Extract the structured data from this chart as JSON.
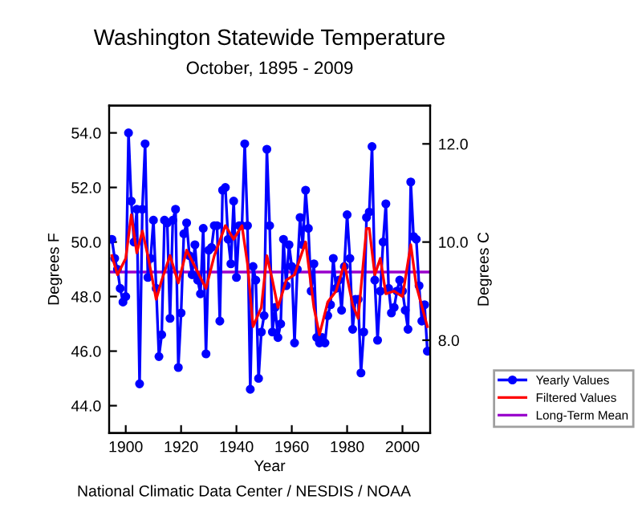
{
  "chart_data": {
    "type": "line",
    "title": "Washington Statewide Temperature",
    "subtitle": "October, 1895 - 2009",
    "xlabel": "Year",
    "ylabel": "Degrees F",
    "y2label": "Degrees C",
    "annotations": [
      "National Climatic Data Center / NESDIS / NOAA"
    ],
    "xlim": [
      1894,
      2010
    ],
    "xticks": [
      1900,
      1920,
      1940,
      1960,
      1980,
      2000
    ],
    "ylim": [
      43,
      55
    ],
    "yticks": [
      {
        "value": 44,
        "label": "44.0"
      },
      {
        "value": 46,
        "label": "46.0"
      },
      {
        "value": 48,
        "label": "48.0"
      },
      {
        "value": 50,
        "label": "50.0"
      },
      {
        "value": 52,
        "label": "52.0"
      },
      {
        "value": 54,
        "label": "54.0"
      }
    ],
    "y2lim": [
      6.11,
      12.78
    ],
    "y2ticks": [
      {
        "value": 8,
        "label": "8.0"
      },
      {
        "value": 10,
        "label": "10.0"
      },
      {
        "value": 12,
        "label": "12.0"
      }
    ],
    "grid": false,
    "legend": "right",
    "series": [
      {
        "name": "Yearly Values",
        "color": "#0000ff",
        "marker": "circle",
        "x": [
          1895,
          1896,
          1897,
          1898,
          1899,
          1900,
          1901,
          1902,
          1903,
          1904,
          1905,
          1906,
          1907,
          1908,
          1909,
          1910,
          1911,
          1912,
          1913,
          1914,
          1915,
          1916,
          1917,
          1918,
          1919,
          1920,
          1921,
          1922,
          1923,
          1924,
          1925,
          1926,
          1927,
          1928,
          1929,
          1930,
          1931,
          1932,
          1933,
          1934,
          1935,
          1936,
          1937,
          1938,
          1939,
          1940,
          1941,
          1942,
          1943,
          1944,
          1945,
          1946,
          1947,
          1948,
          1949,
          1950,
          1951,
          1952,
          1953,
          1954,
          1955,
          1956,
          1957,
          1958,
          1959,
          1960,
          1961,
          1962,
          1963,
          1964,
          1965,
          1966,
          1967,
          1968,
          1969,
          1970,
          1971,
          1972,
          1973,
          1974,
          1975,
          1976,
          1977,
          1978,
          1979,
          1980,
          1981,
          1982,
          1983,
          1984,
          1985,
          1986,
          1987,
          1988,
          1989,
          1990,
          1991,
          1992,
          1993,
          1994,
          1995,
          1996,
          1997,
          1998,
          1999,
          2000,
          2001,
          2002,
          2003,
          2004,
          2005,
          2006,
          2007,
          2008,
          2009
        ],
        "values": [
          50.1,
          49.4,
          49.0,
          48.3,
          47.8,
          48.0,
          54.0,
          51.5,
          50.0,
          51.2,
          44.8,
          51.2,
          53.6,
          48.7,
          49.4,
          50.8,
          48.3,
          45.8,
          46.6,
          50.8,
          50.7,
          47.2,
          50.8,
          51.2,
          45.4,
          47.4,
          50.3,
          50.7,
          49.5,
          48.8,
          49.9,
          48.6,
          48.1,
          50.5,
          45.9,
          49.7,
          49.8,
          50.6,
          50.6,
          47.1,
          51.9,
          52.0,
          50.1,
          49.2,
          51.5,
          48.7,
          50.6,
          50.6,
          53.6,
          50.6,
          44.6,
          49.1,
          48.6,
          45.0,
          46.7,
          47.3,
          53.4,
          50.6,
          46.7,
          47.6,
          46.5,
          47.0,
          50.1,
          48.4,
          49.9,
          49.1,
          46.3,
          49.0,
          50.9,
          49.9,
          51.9,
          50.5,
          48.2,
          49.2,
          46.5,
          46.3,
          46.5,
          46.3,
          47.3,
          47.7,
          49.4,
          48.3,
          48.6,
          47.5,
          49.1,
          51.0,
          49.4,
          46.8,
          47.9,
          47.9,
          45.2,
          46.7,
          50.9,
          51.1,
          53.5,
          48.6,
          46.4,
          48.2,
          50.0,
          51.4,
          48.3,
          47.4,
          47.6,
          48.2,
          48.6,
          48.2,
          47.5,
          46.8,
          52.2,
          50.2,
          50.1,
          48.4,
          47.1,
          47.7,
          46.0
        ]
      },
      {
        "name": "Filtered Values",
        "color": "#ff0000",
        "marker": "none",
        "x": [
          1895,
          1897,
          1900,
          1902,
          1904,
          1906,
          1908,
          1911,
          1913,
          1916,
          1919,
          1922,
          1925,
          1929,
          1932,
          1936,
          1939,
          1942,
          1944,
          1946,
          1949,
          1951,
          1953,
          1955,
          1958,
          1961,
          1965,
          1968,
          1970,
          1973,
          1976,
          1979,
          1982,
          1984,
          1987,
          1988,
          1990,
          1992,
          1994,
          1997,
          2000,
          2003,
          2005,
          2009
        ],
        "values": [
          49.5,
          48.8,
          49.4,
          51.0,
          49.6,
          50.4,
          49.5,
          47.9,
          48.6,
          49.5,
          48.5,
          49.7,
          49.1,
          48.3,
          49.5,
          50.6,
          50.1,
          50.6,
          49.2,
          46.9,
          47.6,
          49.5,
          48.6,
          47.6,
          48.6,
          48.8,
          50.0,
          47.6,
          46.6,
          47.8,
          48.2,
          49.2,
          47.7,
          47.2,
          50.5,
          50.5,
          48.8,
          49.4,
          48.1,
          48.2,
          48.0,
          49.9,
          48.4,
          46.9
        ]
      }
    ],
    "ref_lines": [
      {
        "axis": "y",
        "value": 48.9,
        "label": "Long-Term Mean",
        "color": "#9900cc"
      }
    ]
  }
}
